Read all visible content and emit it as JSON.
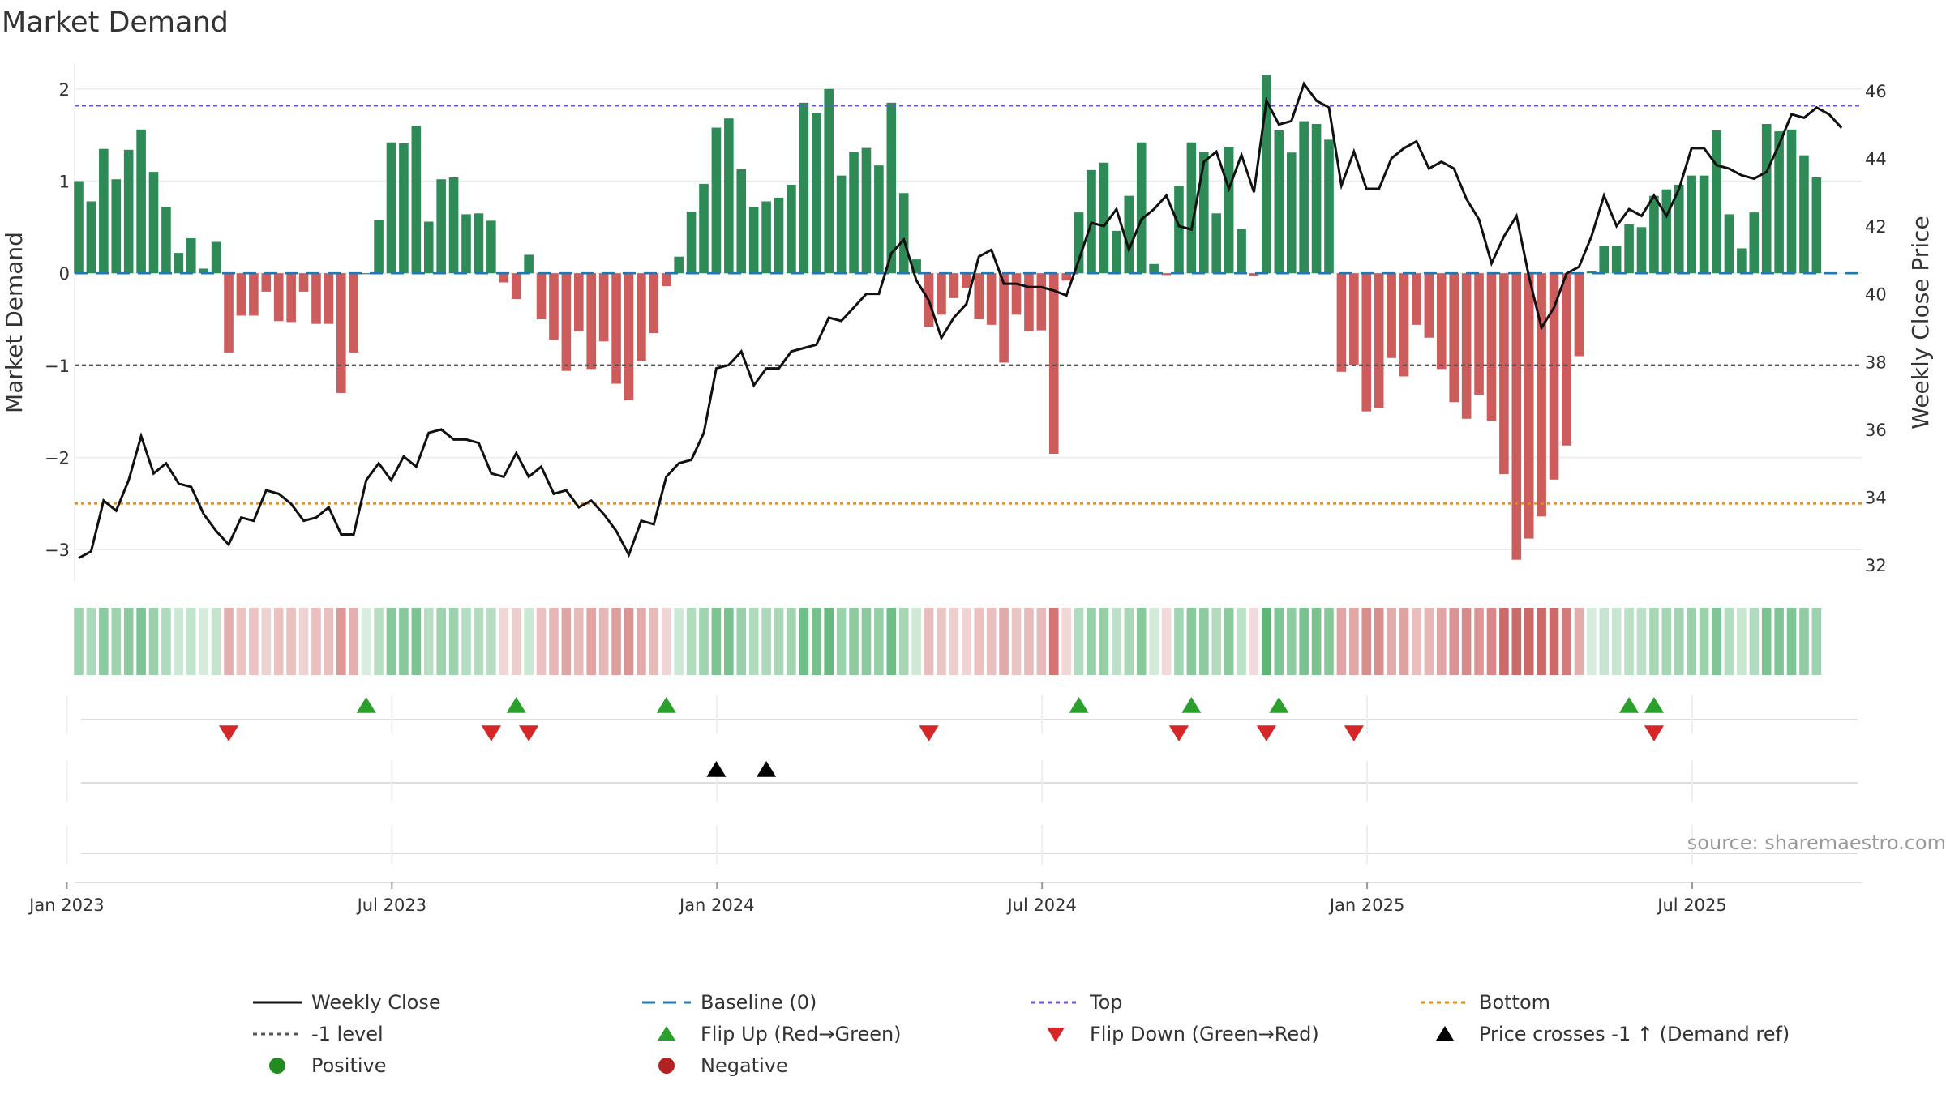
{
  "title": "Market Demand",
  "source": "source: sharemaestro.com",
  "axes": {
    "left_label": "Market Demand",
    "right_label": "Weekly Close Price",
    "left_ticks": [
      "2",
      "1",
      "0",
      "−1",
      "−2",
      "−3"
    ],
    "left_tick_values": [
      2,
      1,
      0,
      -1,
      -2,
      -3
    ],
    "right_ticks": [
      "46",
      "44",
      "42",
      "40",
      "38",
      "36",
      "34",
      "32"
    ],
    "right_tick_values": [
      46,
      44,
      42,
      40,
      38,
      36,
      34,
      32
    ],
    "x_ticks": [
      "Jan 2023",
      "Jul 2023",
      "Jan 2024",
      "Jul 2024",
      "Jan 2025",
      "Jul 2025"
    ],
    "x_tick_weeks": [
      1,
      27,
      53,
      79,
      105,
      131
    ]
  },
  "levels": {
    "top": 1.82,
    "minus_one": -1,
    "bottom": -2.5,
    "baseline": 0
  },
  "colors": {
    "positive": "#2e8b57",
    "negative": "#cd5c5c",
    "price_line": "#111111",
    "baseline": "#1f77b4",
    "top": "#6a5acd",
    "minus_one": "#555555",
    "bottom": "#e08a1e",
    "flip_up": "#2ca02c",
    "flip_down": "#d62728",
    "cross_marker": "#000000",
    "positive_dot": "#228b22",
    "negative_dot": "#b22222"
  },
  "legend": [
    {
      "label": "Weekly Close",
      "kind": "line-solid",
      "color_key": "price_line"
    },
    {
      "label": "Baseline (0)",
      "kind": "line-dashed",
      "color_key": "baseline"
    },
    {
      "label": "Top",
      "kind": "line-dotted",
      "color_key": "top"
    },
    {
      "label": "Bottom",
      "kind": "line-dotted",
      "color_key": "bottom"
    },
    {
      "label": "-1 level",
      "kind": "line-dotted",
      "color_key": "minus_one"
    },
    {
      "label": "Flip Up (Red→Green)",
      "kind": "triangle-up",
      "color_key": "flip_up"
    },
    {
      "label": "Flip Down (Green→Red)",
      "kind": "triangle-down",
      "color_key": "flip_down"
    },
    {
      "label": "Price crosses -1 ↑ (Demand ref)",
      "kind": "triangle-up",
      "color_key": "cross_marker"
    },
    {
      "label": "Positive",
      "kind": "dot",
      "color_key": "positive_dot"
    },
    {
      "label": "Negative",
      "kind": "dot",
      "color_key": "negative_dot"
    }
  ],
  "chart_data": {
    "type": "bar",
    "title": "Market Demand",
    "x_unit": "week index (0 = last week of Dec 2022)",
    "ylabel": "Market Demand",
    "y2label": "Weekly Close Price",
    "ylim": [
      -3.35,
      2.35
    ],
    "y2lim": [
      31.5,
      47.0
    ],
    "series": [
      {
        "name": "Market Demand",
        "values": [
          1.0,
          0.78,
          1.35,
          1.02,
          1.34,
          1.56,
          1.1,
          0.72,
          0.22,
          0.38,
          0.05,
          0.34,
          -0.86,
          -0.46,
          -0.46,
          -0.2,
          -0.52,
          -0.53,
          -0.2,
          -0.55,
          -0.55,
          -1.3,
          -0.86,
          0.0,
          0.58,
          1.42,
          1.41,
          1.6,
          0.56,
          1.02,
          1.04,
          0.64,
          0.65,
          0.57,
          -0.1,
          -0.28,
          0.2,
          -0.5,
          -0.72,
          -1.06,
          -0.63,
          -1.04,
          -0.74,
          -1.2,
          -1.38,
          -0.95,
          -0.65,
          -0.14,
          0.18,
          0.67,
          0.97,
          1.58,
          1.68,
          1.13,
          0.72,
          0.78,
          0.82,
          0.96,
          1.85,
          1.74,
          2.0,
          1.06,
          1.32,
          1.36,
          1.17,
          1.85,
          0.87,
          0.15,
          -0.58,
          -0.45,
          -0.27,
          -0.16,
          -0.5,
          -0.56,
          -0.97,
          -0.45,
          -0.63,
          -0.62,
          -1.96,
          -0.08,
          0.66,
          1.12,
          1.2,
          0.46,
          0.84,
          1.42,
          0.1,
          -0.02,
          0.95,
          1.42,
          1.32,
          0.65,
          1.37,
          0.48,
          -0.03,
          2.15,
          1.55,
          1.31,
          1.65,
          1.62,
          1.45,
          -1.07,
          -1.0,
          -1.5,
          -1.46,
          -0.92,
          -1.12,
          -0.56,
          -0.7,
          -1.04,
          -1.4,
          -1.58,
          -1.32,
          -1.6,
          -2.18,
          -3.11,
          -2.88,
          -2.64,
          -2.24,
          -1.87,
          -0.9,
          0.02,
          0.3,
          0.3,
          0.53,
          0.5,
          0.84,
          0.91,
          0.96,
          1.06,
          1.06,
          1.55,
          0.64,
          0.27,
          0.66,
          1.62,
          1.54,
          1.56,
          1.28,
          1.04
        ]
      },
      {
        "name": "Weekly Close",
        "axis": "right",
        "values": [
          32.2,
          32.4,
          33.9,
          33.6,
          34.5,
          35.8,
          34.7,
          35.0,
          34.4,
          34.3,
          33.5,
          33.0,
          32.6,
          33.4,
          33.3,
          34.2,
          34.1,
          33.8,
          33.3,
          33.4,
          33.7,
          32.9,
          32.9,
          34.5,
          35.0,
          34.5,
          35.2,
          34.9,
          35.9,
          36.0,
          35.7,
          35.7,
          35.6,
          34.7,
          34.6,
          35.3,
          34.6,
          34.9,
          34.1,
          34.2,
          33.7,
          33.9,
          33.5,
          33.0,
          32.3,
          33.3,
          33.2,
          34.6,
          35.0,
          35.1,
          35.9,
          37.8,
          37.9,
          38.3,
          37.3,
          37.8,
          37.8,
          38.3,
          38.4,
          38.5,
          39.3,
          39.2,
          39.6,
          40.0,
          40.0,
          41.2,
          41.6,
          40.4,
          39.8,
          38.7,
          39.3,
          39.7,
          41.1,
          41.3,
          40.3,
          40.3,
          40.2,
          40.2,
          40.1,
          39.95,
          41.0,
          42.1,
          42.0,
          42.5,
          41.3,
          42.2,
          42.5,
          42.9,
          42.0,
          41.9,
          43.9,
          44.2,
          43.1,
          44.1,
          43.0,
          45.7,
          45.0,
          45.1,
          46.2,
          45.7,
          45.5,
          43.2,
          44.2,
          43.1,
          43.1,
          44.0,
          44.3,
          44.5,
          43.7,
          43.9,
          43.7,
          42.8,
          42.2,
          40.9,
          41.7,
          42.3,
          40.5,
          39.0,
          39.6,
          40.6,
          40.8,
          41.7,
          42.9,
          42.0,
          42.5,
          42.3,
          42.9,
          42.3,
          43.1,
          44.3,
          44.3,
          43.8,
          43.7,
          43.5,
          43.4,
          43.6,
          44.4,
          45.3,
          45.2,
          45.5,
          45.3,
          44.9
        ]
      }
    ],
    "flip_up_weeks": [
      23,
      35,
      47,
      80,
      89,
      96,
      124,
      126
    ],
    "flip_down_weeks": [
      12,
      33,
      36,
      68,
      88,
      95,
      102,
      126
    ],
    "price_cross_weeks": [
      51,
      55
    ],
    "legend_position": "bottom"
  }
}
